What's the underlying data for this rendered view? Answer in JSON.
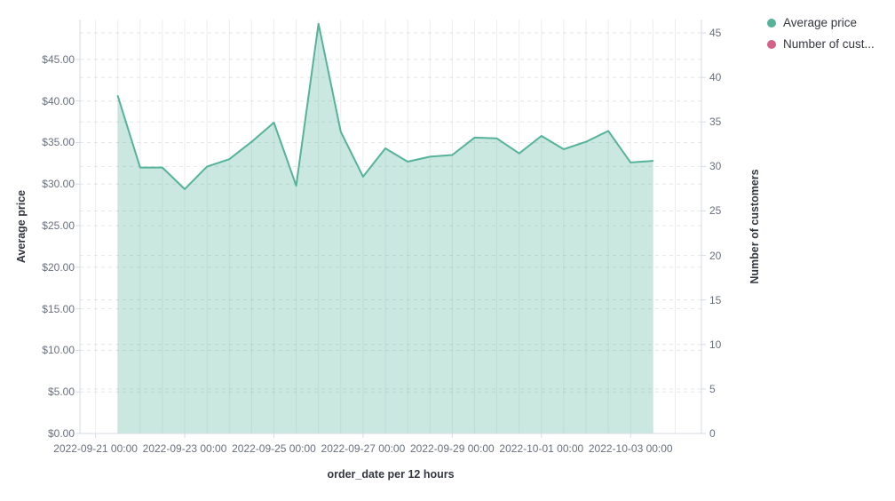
{
  "legend": {
    "position": "top-right",
    "items": [
      {
        "label": "Average price",
        "color": "#54b399",
        "marker": "circle-icon"
      },
      {
        "label": "Number of cust...",
        "color": "#d36086",
        "marker": "circle-icon"
      }
    ]
  },
  "chart_data": {
    "type": "area",
    "title": "",
    "x_label": "order_date per 12 hours",
    "x_interval": "12 hours",
    "x_tick_labels": [
      "2022-09-21 00:00",
      "2022-09-23 00:00",
      "2022-09-25 00:00",
      "2022-09-27 00:00",
      "2022-09-29 00:00",
      "2022-10-01 00:00",
      "2022-10-03 00:00"
    ],
    "x": [
      "2022-09-21 12:00",
      "2022-09-22 00:00",
      "2022-09-22 12:00",
      "2022-09-23 00:00",
      "2022-09-23 12:00",
      "2022-09-24 00:00",
      "2022-09-24 12:00",
      "2022-09-25 00:00",
      "2022-09-25 12:00",
      "2022-09-26 00:00",
      "2022-09-26 12:00",
      "2022-09-27 00:00",
      "2022-09-27 12:00",
      "2022-09-28 00:00",
      "2022-09-28 12:00",
      "2022-09-29 00:00",
      "2022-09-29 12:00",
      "2022-09-30 00:00",
      "2022-09-30 12:00",
      "2022-10-01 00:00",
      "2022-10-01 12:00",
      "2022-10-02 00:00",
      "2022-10-02 12:00",
      "2022-10-03 00:00",
      "2022-10-03 12:00"
    ],
    "series": [
      {
        "name": "Average price",
        "axis": "left",
        "color": "#54b399",
        "fill_opacity": 0.3,
        "values": [
          40.6,
          32.0,
          32.0,
          29.4,
          32.1,
          33.0,
          35.1,
          37.4,
          29.8,
          49.3,
          36.3,
          30.9,
          34.3,
          32.7,
          33.3,
          33.5,
          35.6,
          35.5,
          33.7,
          35.8,
          34.2,
          35.1,
          36.4,
          32.6,
          32.8
        ]
      },
      {
        "name": "Number of customers",
        "axis": "right",
        "color": "#d36086",
        "values": []
      }
    ],
    "y_left": {
      "label": "Average price",
      "tick_labels": [
        "$0.00",
        "$5.00",
        "$10.00",
        "$15.00",
        "$20.00",
        "$25.00",
        "$30.00",
        "$35.00",
        "$40.00",
        "$45.00"
      ],
      "tick_values": [
        0,
        5,
        10,
        15,
        20,
        25,
        30,
        35,
        40,
        45
      ],
      "range": [
        0,
        49.8
      ]
    },
    "y_right": {
      "label": "Number of customers",
      "tick_labels": [
        "0",
        "5",
        "10",
        "15",
        "20",
        "25",
        "30",
        "35",
        "40",
        "45"
      ],
      "tick_values": [
        0,
        5,
        10,
        15,
        20,
        25,
        30,
        35,
        40,
        45
      ],
      "range": [
        0,
        46.5
      ]
    },
    "grid": {
      "vertical": true,
      "horizontal_dashed": true
    },
    "legend_position": "top-right"
  },
  "colors": {
    "background": "#ffffff",
    "gridline": "rgba(105,115,125,0.13)",
    "grid_dash": "rgba(105,115,125,0.18)",
    "axis_line": "#d6dbe3",
    "tick_text": "#69707d",
    "title_text": "#343741"
  }
}
